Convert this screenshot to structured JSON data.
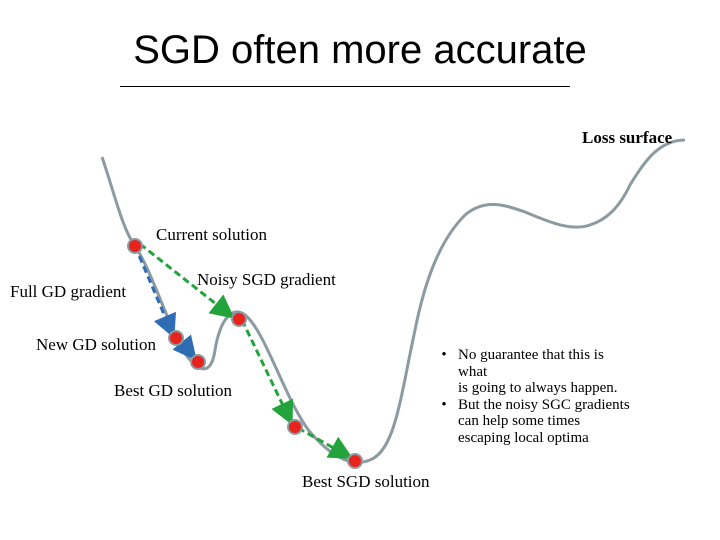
{
  "title": "SGD often more accurate",
  "labels": {
    "loss_surface": "Loss surface",
    "current_solution": "Current solution",
    "full_gd_gradient": "Full GD gradient",
    "noisy_sgd_gradient": "Noisy SGD gradient",
    "new_gd_solution": "New GD solution",
    "best_gd_solution": "Best GD solution",
    "best_sgd_solution": "Best SGD solution"
  },
  "notes": [
    {
      "bullet": "•",
      "lines": [
        "No guarantee that this is",
        "what",
        "is going to always happen."
      ]
    },
    {
      "bullet": "•",
      "lines": [
        "But the noisy SGC gradients",
        "can help some times",
        "escaping local optima"
      ]
    }
  ],
  "colors": {
    "curve": "#8c9aa1",
    "point": "#e8231e",
    "gd_arrow": "#2e6db4",
    "sgd_arrow": "#22a33b"
  }
}
